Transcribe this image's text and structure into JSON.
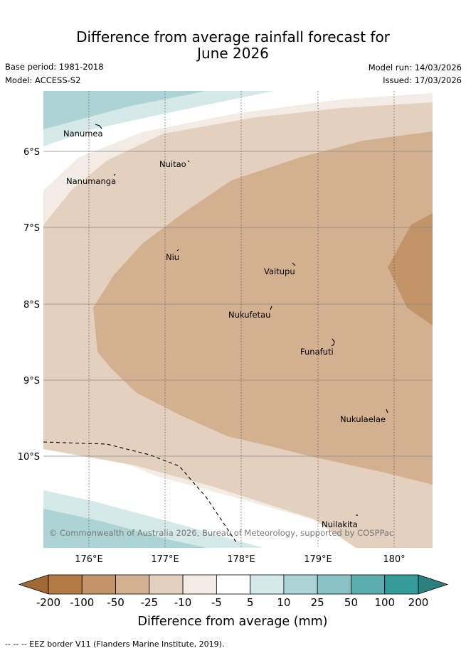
{
  "title": {
    "line1": "Difference from average rainfall forecast for",
    "line2": "June 2026"
  },
  "meta": {
    "base_period": "Base period: 1981-2018",
    "model": "Model: ACCESS-S2",
    "model_run": "Model run: 14/03/2026",
    "issued": "Issued: 17/03/2026"
  },
  "map": {
    "lat_labels": [
      "6°S",
      "7°S",
      "8°S",
      "9°S",
      "10°S"
    ],
    "lon_labels": [
      "176°E",
      "177°E",
      "178°E",
      "179°E",
      "180°"
    ],
    "islands": [
      "Nanumea",
      "Nuitao",
      "Nanumanga",
      "Niu",
      "Vaitupu",
      "Nukufetau",
      "Funafuti",
      "Nukulaelae",
      "Nuilakita"
    ],
    "copyright": "© Commonwealth of Australia 2026, Bureau of Meteorology, supported by COSPPac"
  },
  "colorbar": {
    "ticks": [
      "-200",
      "-100",
      "-50",
      "-25",
      "-10",
      "-5",
      "5",
      "10",
      "25",
      "50",
      "100",
      "200"
    ],
    "label": "Difference from average (mm)",
    "colors": [
      "#a06a38",
      "#b27a44",
      "#c29468",
      "#d2b090",
      "#e3d0be",
      "#f2ece4",
      "#ffffff",
      "#d5e9e8",
      "#acd4d4",
      "#88c2c2",
      "#5eadad",
      "#359b9b",
      "#2b7f7f"
    ]
  },
  "footer": {
    "eez_note": "-- -- -- EEZ border V11 (Flanders Marine Institute, 2019)."
  }
}
